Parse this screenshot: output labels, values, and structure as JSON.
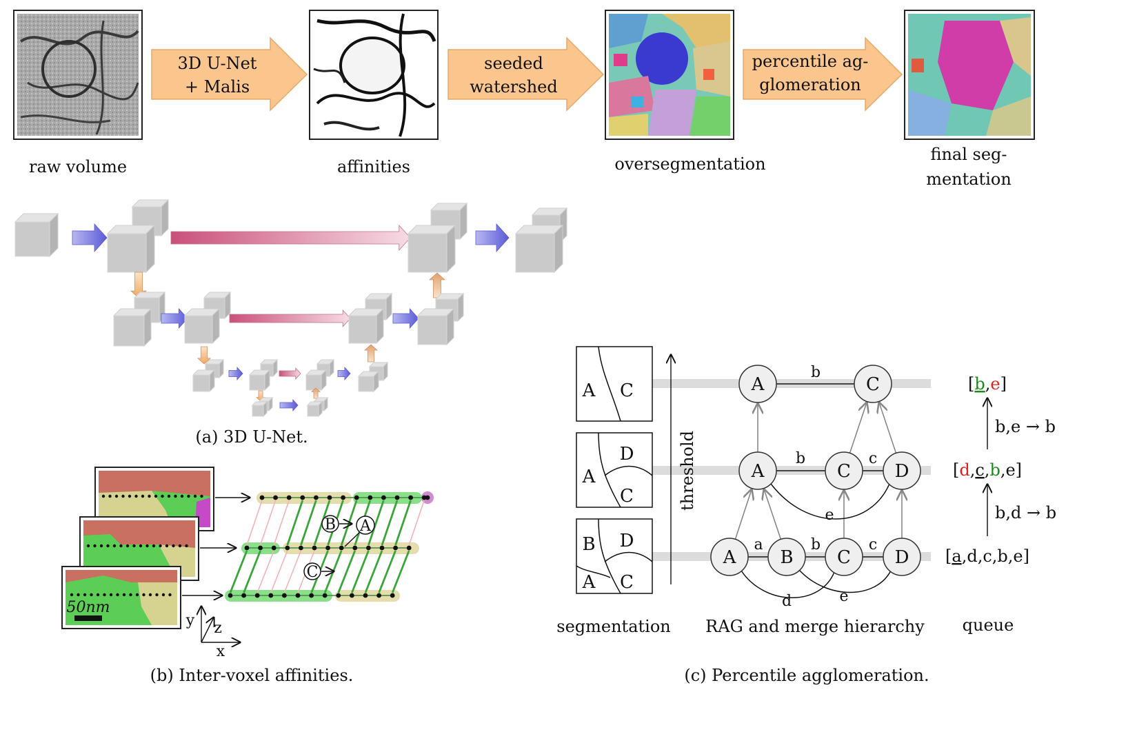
{
  "pipeline": {
    "images": [
      {
        "label": "raw volume",
        "kind": "raw"
      },
      {
        "label": "affinities",
        "kind": "affinity"
      },
      {
        "label": "oversegmentation",
        "kind": "overseg"
      },
      {
        "label_lines": [
          "final seg-",
          "mentation"
        ],
        "kind": "final"
      }
    ],
    "arrows": [
      {
        "lines": [
          "3D U-Net",
          "+ Malis"
        ]
      },
      {
        "lines": [
          "seeded",
          "watershed"
        ]
      },
      {
        "lines": [
          "percentile ag-",
          "glomeration"
        ]
      }
    ],
    "arrow_color": "#f9c48e"
  },
  "unet": {
    "caption": "(a) 3D U-Net.",
    "colors": {
      "cube": "#c8c8c8",
      "conv_arrow": "#6f6fe0",
      "skip_arrow": "#c95a7e",
      "pool_arrow": "#f0b27a"
    }
  },
  "affinities": {
    "caption": "(b) Inter-voxel affinities.",
    "scale_label": "50nm",
    "axes": {
      "x": "x",
      "y": "y",
      "z": "z"
    },
    "markers": {
      "b": "B",
      "a": "A",
      "c": "C"
    }
  },
  "agglomeration": {
    "caption": "(c) Percentile agglomeration.",
    "column_labels": {
      "segmentation": "segmentation",
      "rag": "RAG and merge hierarchy",
      "queue": "queue"
    },
    "threshold_label": "threshold",
    "segment_panels": [
      {
        "labels": [
          "A",
          "C"
        ]
      },
      {
        "labels": [
          "A",
          "D",
          "C"
        ]
      },
      {
        "labels": [
          "B",
          "D",
          "A",
          "C"
        ]
      }
    ],
    "levels": [
      {
        "nodes": [
          "A",
          "C"
        ],
        "edges": [
          {
            "label": "b"
          }
        ]
      },
      {
        "nodes": [
          "A",
          "C",
          "D"
        ],
        "edges": [
          {
            "label": "b"
          },
          {
            "label": "c"
          },
          {
            "label": "e"
          }
        ]
      },
      {
        "nodes": [
          "A",
          "B",
          "C",
          "D"
        ],
        "edges": [
          {
            "label": "a"
          },
          {
            "label": "b"
          },
          {
            "label": "c"
          },
          {
            "label": "d"
          },
          {
            "label": "e"
          }
        ]
      }
    ],
    "queues": [
      {
        "items": [
          {
            "t": "b",
            "c": "#1a8a1a",
            "u": true
          },
          {
            "t": ",",
            "c": "#111"
          },
          {
            "t": "e",
            "c": "#e02020"
          }
        ]
      },
      {
        "items": [
          {
            "t": "d",
            "c": "#e02020"
          },
          {
            "t": ",",
            "c": "#111"
          },
          {
            "t": "c",
            "c": "#111",
            "u": true
          },
          {
            "t": ",",
            "c": "#111"
          },
          {
            "t": "b",
            "c": "#1a8a1a"
          },
          {
            "t": ",e",
            "c": "#111"
          }
        ]
      },
      {
        "items": [
          {
            "t": "a",
            "c": "#111",
            "u": true
          },
          {
            "t": ",d,c,b,e",
            "c": "#111"
          }
        ]
      }
    ],
    "merges": [
      "b,e → b",
      "b,d → b"
    ]
  }
}
